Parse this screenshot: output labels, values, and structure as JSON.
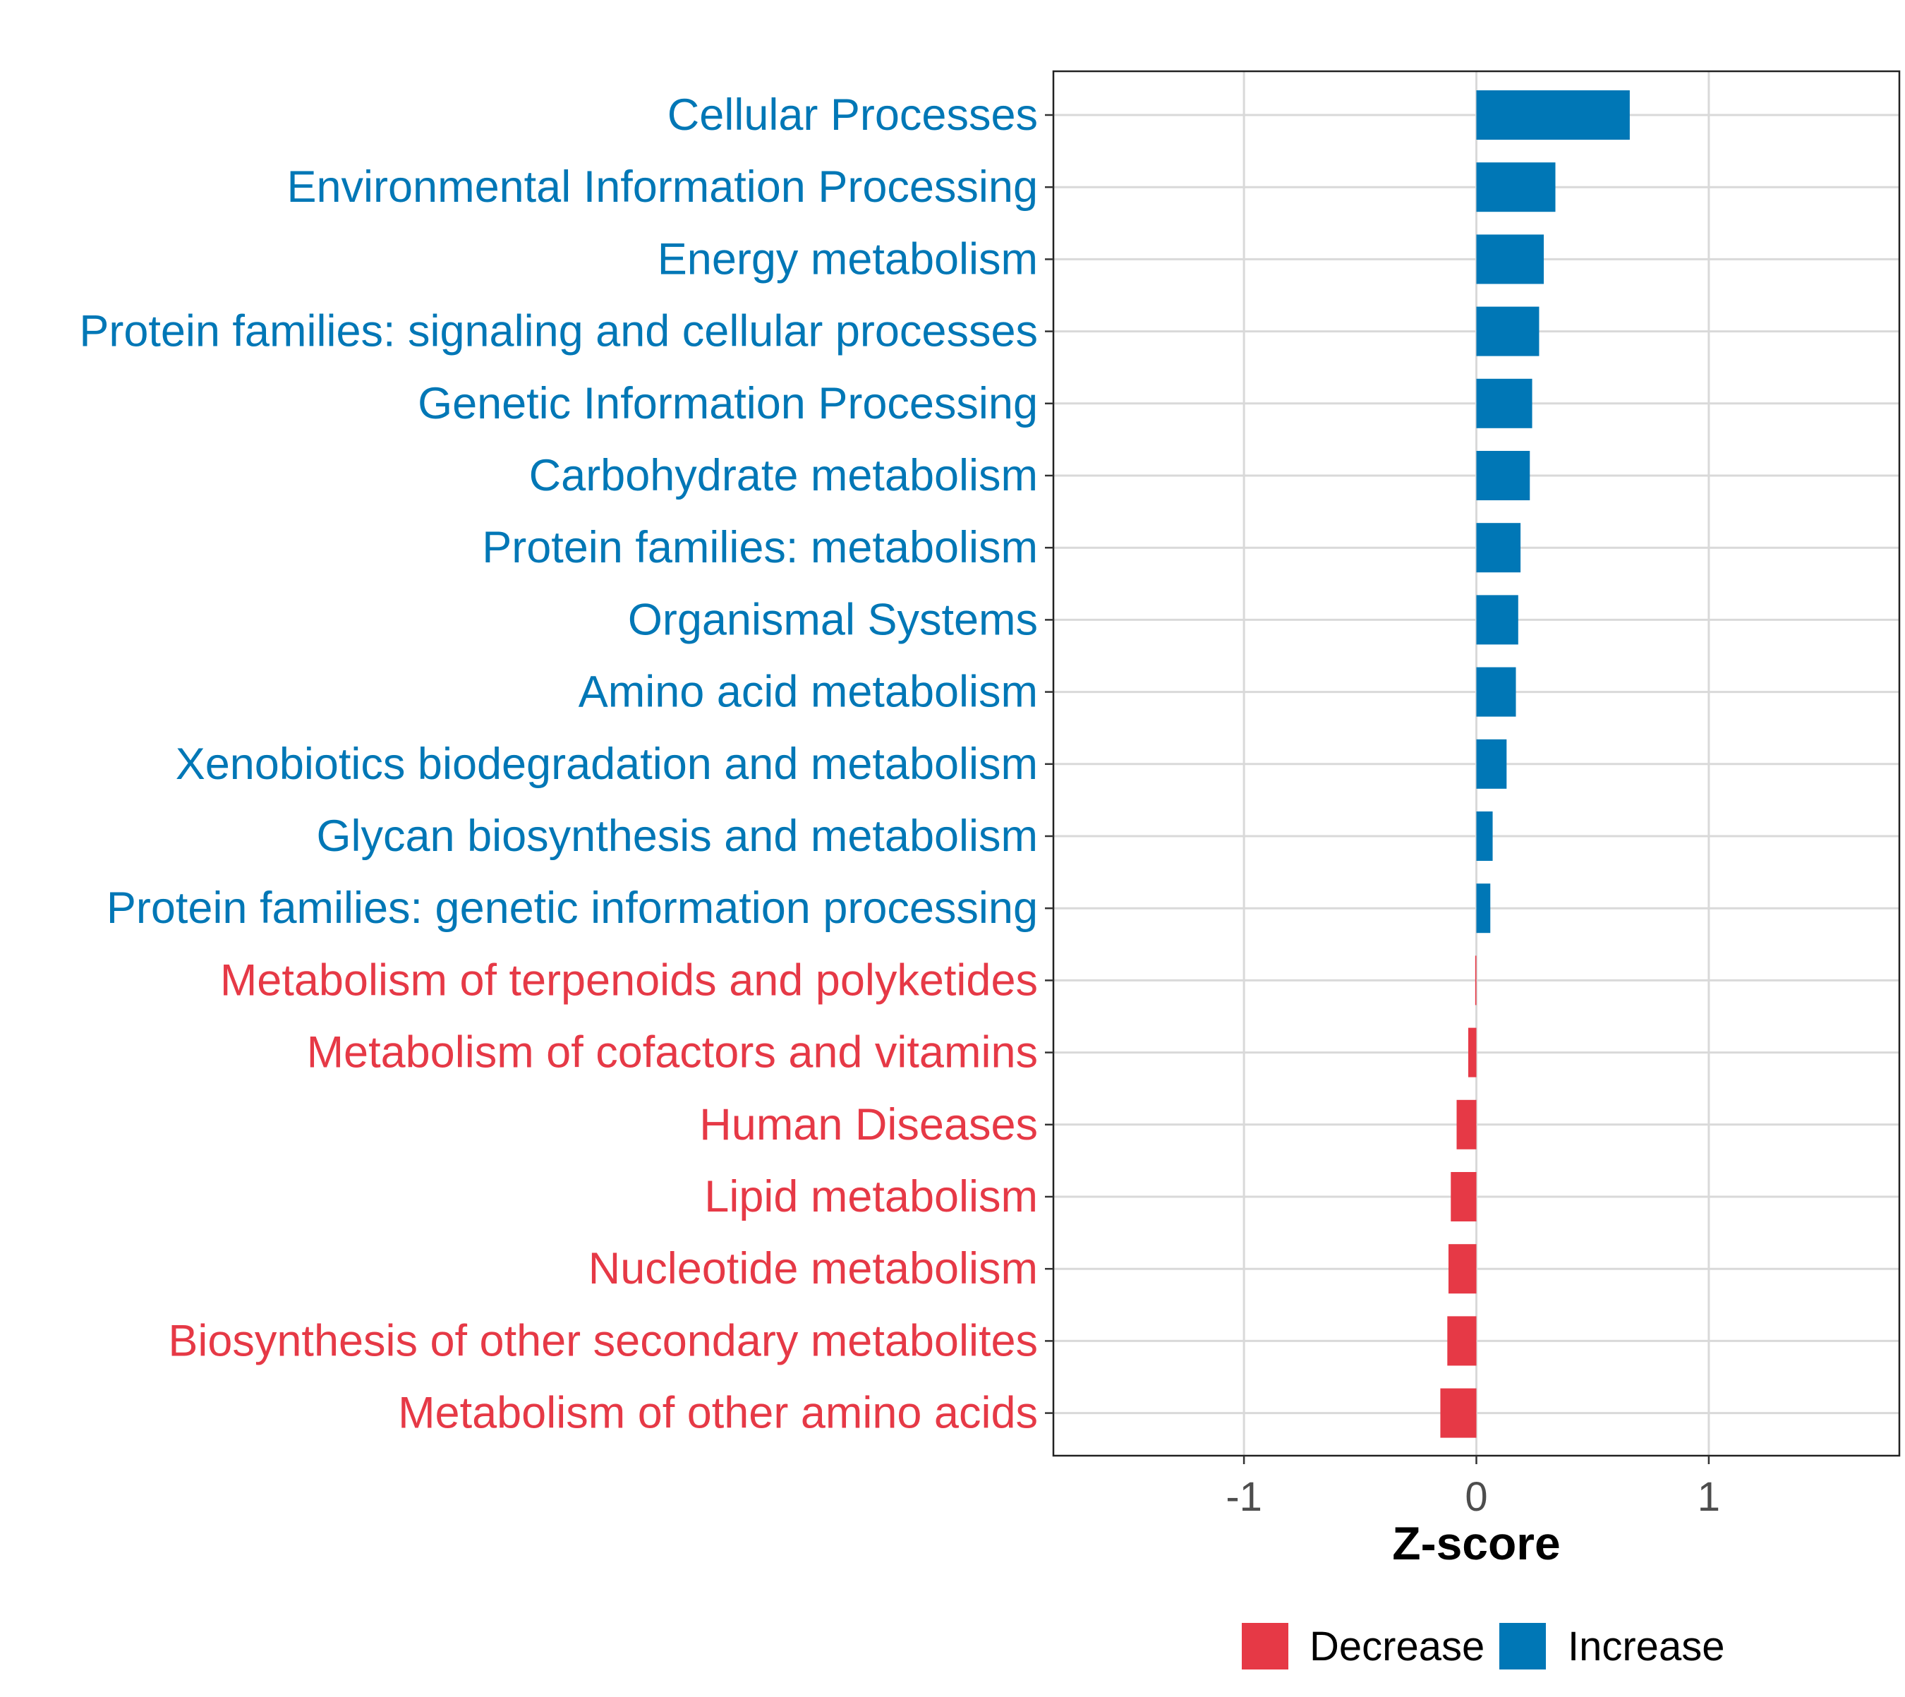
{
  "chart_data": {
    "type": "bar",
    "orientation": "horizontal",
    "title": "",
    "xlabel": "Z-score",
    "ylabel": "",
    "xlim": [
      -1.82,
      1.82
    ],
    "xticks": [
      -1,
      0,
      1
    ],
    "xtick_labels": [
      "-1",
      "0",
      "1"
    ],
    "grid": true,
    "legend": {
      "position": "bottom",
      "entries": [
        {
          "label": "Decrease",
          "color": "#E63946"
        },
        {
          "label": "Increase",
          "color": "#0077B6"
        }
      ]
    },
    "colors": {
      "Increase": "#0077B6",
      "Decrease": "#E63946"
    },
    "categories": [
      "Cellular Processes",
      "Environmental Information Processing",
      "Energy metabolism",
      "Protein families: signaling and cellular processes",
      "Genetic Information Processing",
      "Carbohydrate metabolism",
      "Protein families: metabolism",
      "Organismal Systems",
      "Amino acid metabolism",
      "Xenobiotics biodegradation and metabolism",
      "Glycan biosynthesis and metabolism",
      "Protein families: genetic information processing",
      "Metabolism of terpenoids and polyketides",
      "Metabolism of cofactors and vitamins",
      "Human Diseases",
      "Lipid metabolism",
      "Nucleotide metabolism",
      "Biosynthesis of other secondary metabolites",
      "Metabolism of other amino acids"
    ],
    "values": [
      0.66,
      0.34,
      0.29,
      0.27,
      0.24,
      0.23,
      0.19,
      0.18,
      0.17,
      0.13,
      0.07,
      0.06,
      -0.005,
      -0.035,
      -0.085,
      -0.11,
      -0.12,
      -0.125,
      -0.155
    ],
    "groups": [
      "Increase",
      "Increase",
      "Increase",
      "Increase",
      "Increase",
      "Increase",
      "Increase",
      "Increase",
      "Increase",
      "Increase",
      "Increase",
      "Increase",
      "Decrease",
      "Decrease",
      "Decrease",
      "Decrease",
      "Decrease",
      "Decrease",
      "Decrease"
    ]
  }
}
